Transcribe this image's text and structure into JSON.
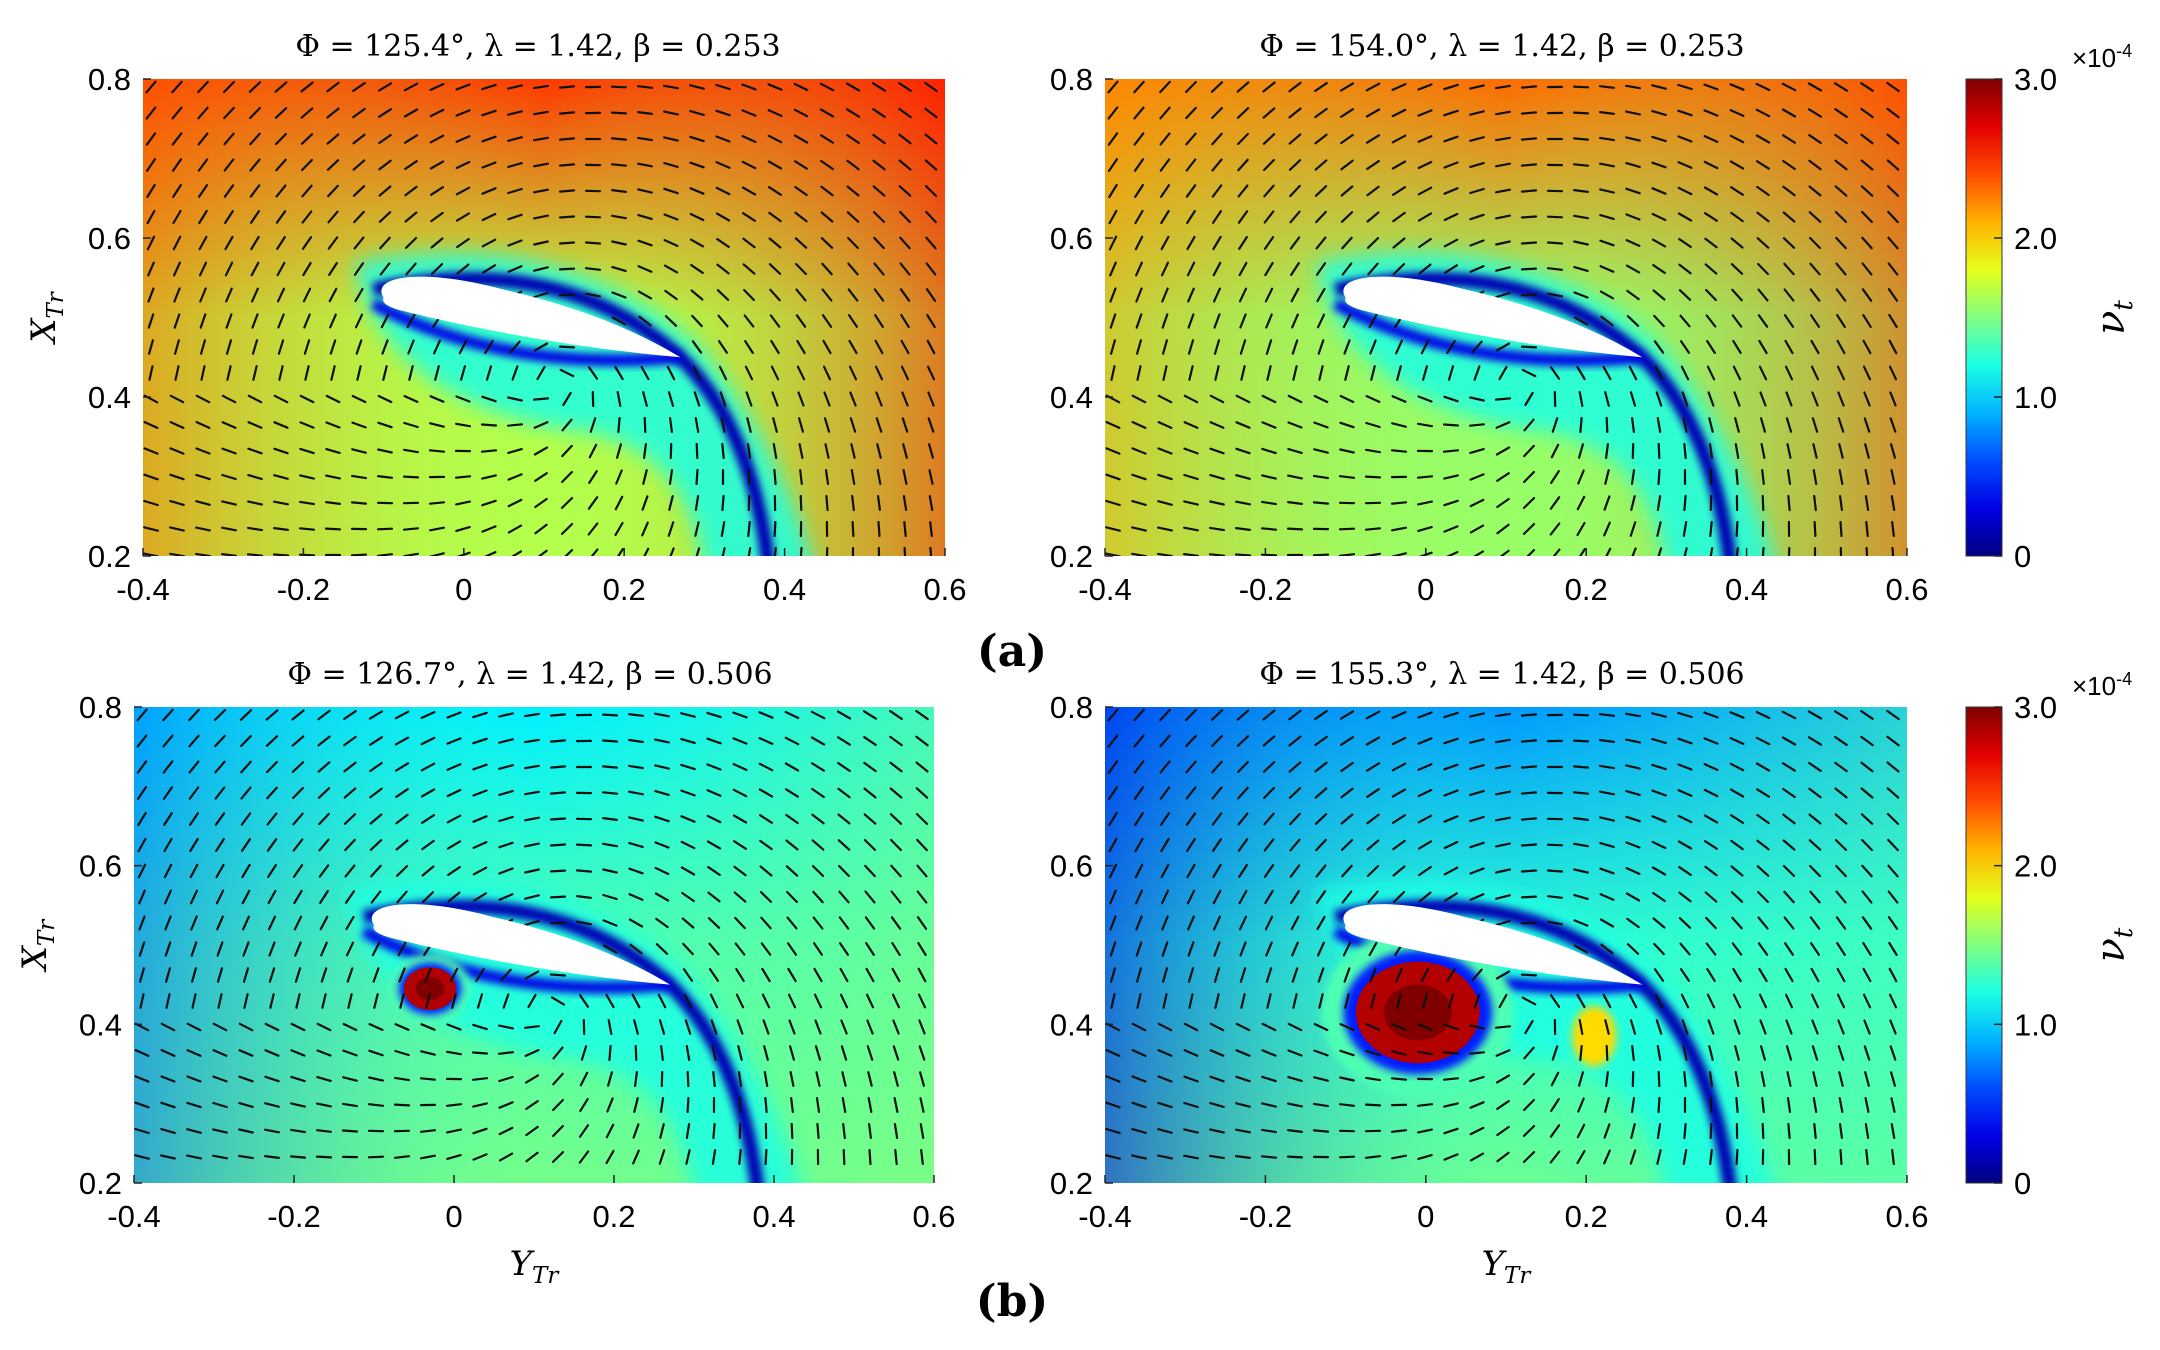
{
  "figure": {
    "row_labels": [
      "(a)",
      "(b)"
    ],
    "x_axis_label_main": "Y",
    "x_axis_label_sub": "Tr",
    "y_axis_label_main": "X",
    "y_axis_label_sub": "Tr",
    "x_ticks": [
      "-0.4",
      "-0.2",
      "0",
      "0.2",
      "0.4",
      "0.6"
    ],
    "y_ticks": [
      "0.2",
      "0.4",
      "0.6",
      "0.8"
    ],
    "colorbar": {
      "label_main": "ν",
      "label_sub": "t",
      "ticks": [
        "0",
        "1.0",
        "2.0",
        "3.0"
      ],
      "exponent_prefix": "×10",
      "exponent": "-4",
      "colormap": "jet",
      "range": [
        0,
        0.0003
      ]
    }
  },
  "chart_data": [
    {
      "type": "heatmap",
      "panel": "a-left",
      "title": "Φ = 125.4°, λ = 1.42, β = 0.253",
      "xlim": [
        -0.4,
        0.6
      ],
      "ylim": [
        0.2,
        0.8
      ],
      "field": "ν_t",
      "value_range": [
        0,
        0.0003
      ],
      "overlay": "velocity vectors",
      "vortex": null
    },
    {
      "type": "heatmap",
      "panel": "a-right",
      "title": "Φ = 154.0°, λ = 1.42, β = 0.253",
      "xlim": [
        -0.4,
        0.6
      ],
      "ylim": [
        0.2,
        0.8
      ],
      "field": "ν_t",
      "value_range": [
        0,
        0.0003
      ],
      "overlay": "velocity vectors",
      "vortex": null
    },
    {
      "type": "heatmap",
      "panel": "b-left",
      "title": "Φ = 126.7°, λ = 1.42, β = 0.506",
      "xlim": [
        -0.4,
        0.6
      ],
      "ylim": [
        0.2,
        0.8
      ],
      "field": "ν_t",
      "value_range": [
        0,
        0.0003
      ],
      "overlay": "velocity vectors",
      "vortex": {
        "x": -0.03,
        "y": 0.445
      }
    },
    {
      "type": "heatmap",
      "panel": "b-right",
      "title": "Φ = 155.3°, λ = 1.42, β = 0.506",
      "xlim": [
        -0.4,
        0.6
      ],
      "ylim": [
        0.2,
        0.8
      ],
      "field": "ν_t",
      "value_range": [
        0,
        0.0003
      ],
      "overlay": "velocity vectors",
      "vortex": {
        "x": -0.01,
        "y": 0.415
      }
    }
  ]
}
